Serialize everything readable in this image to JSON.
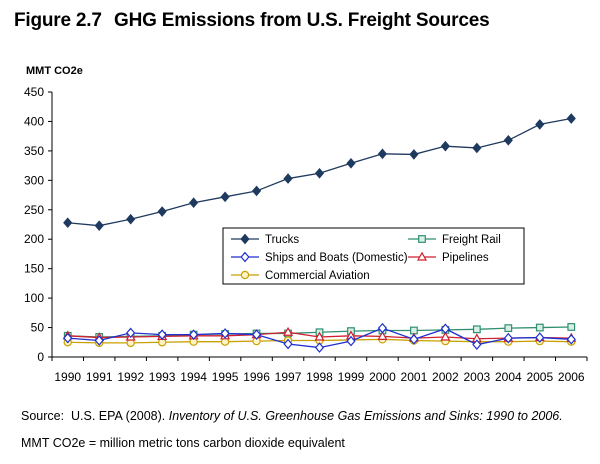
{
  "figure": {
    "number": "Figure 2.7",
    "title": "GHG Emissions from U.S. Freight Sources"
  },
  "source": {
    "label": "Source:",
    "author": "U.S. EPA (2008).",
    "title": "Inventory of U.S. Greenhouse Gas Emissions and Sinks:  1990 to 2006."
  },
  "note": "MMT CO2e = million metric tons carbon dioxide equivalent",
  "chart_data": {
    "type": "line",
    "ylabel": "MMT CO2e",
    "xlabel": "",
    "ylim": [
      0,
      450
    ],
    "yticks": [
      0,
      50,
      100,
      150,
      200,
      250,
      300,
      350,
      400,
      450
    ],
    "grid": false,
    "legend_position": "center-right, boxed, two columns",
    "categories": [
      "1990",
      "1991",
      "1992",
      "1993",
      "1994",
      "1995",
      "1996",
      "1997",
      "1998",
      "1999",
      "2000",
      "2001",
      "2002",
      "2003",
      "2004",
      "2005",
      "2006"
    ],
    "series": [
      {
        "name": "Trucks",
        "color": "#1f3a5f",
        "marker": "diamond-filled",
        "values": [
          228,
          223,
          234,
          247,
          262,
          272,
          282,
          303,
          312,
          329,
          345,
          344,
          358,
          355,
          368,
          395,
          405
        ]
      },
      {
        "name": "Freight Rail",
        "color": "#2f8f6f",
        "marker": "square-open",
        "values": [
          36,
          34,
          35,
          36,
          38,
          39,
          40,
          40,
          42,
          44,
          45,
          45,
          46,
          47,
          49,
          50,
          51
        ]
      },
      {
        "name": "Ships and Boats (Domestic)",
        "color": "#1f2fd0",
        "marker": "diamond-open",
        "values": [
          32,
          28,
          41,
          38,
          38,
          40,
          38,
          22,
          16,
          27,
          49,
          30,
          48,
          21,
          32,
          33,
          30
        ]
      },
      {
        "name": "Pipelines",
        "color": "#d01f2f",
        "marker": "triangle-open",
        "values": [
          36,
          33,
          34,
          35,
          36,
          36,
          38,
          42,
          34,
          36,
          35,
          32,
          34,
          31,
          32,
          33,
          32
        ]
      },
      {
        "name": "Commercial Aviation",
        "color": "#c8a000",
        "marker": "circle-open",
        "values": [
          25,
          24,
          24,
          25,
          26,
          26,
          27,
          28,
          28,
          29,
          30,
          28,
          27,
          26,
          26,
          27,
          26
        ]
      }
    ]
  }
}
